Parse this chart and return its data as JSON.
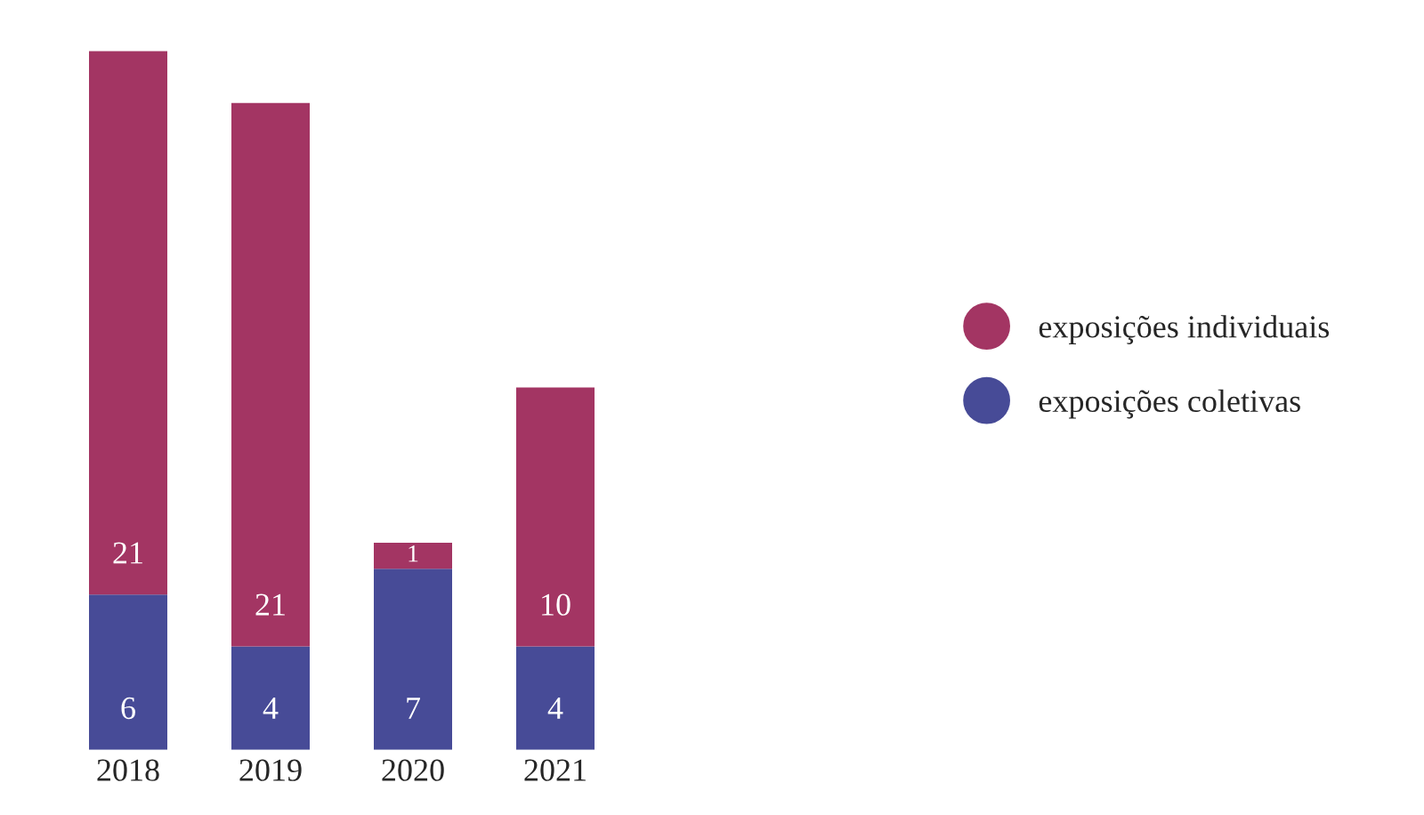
{
  "chart_data": {
    "type": "bar",
    "stacked": true,
    "categories": [
      "2018",
      "2019",
      "2020",
      "2021"
    ],
    "series": [
      {
        "name": "exposições coletivas",
        "color": "#474b97",
        "values": [
          6,
          4,
          7,
          4
        ]
      },
      {
        "name": "exposições individuais",
        "color": "#a33563",
        "values": [
          21,
          21,
          1,
          10
        ]
      }
    ],
    "data_labels": true,
    "legend": "right",
    "grid": false,
    "tick_labels": "x"
  }
}
